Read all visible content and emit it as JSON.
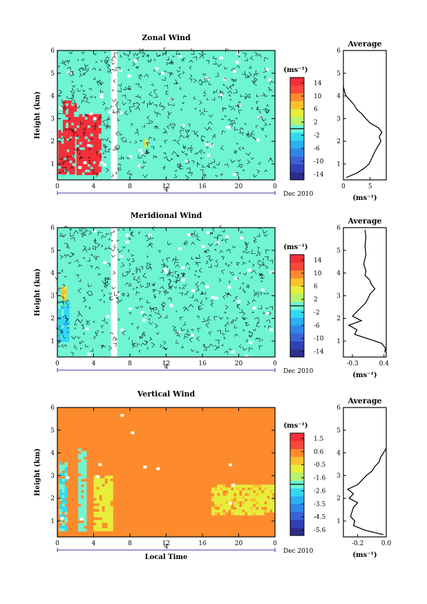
{
  "chart_data": [
    {
      "type": "heatmap",
      "title": "Zonal Wind",
      "ylabel": "Height (km)",
      "xlabel": "",
      "x_ticks": [
        "0",
        "4",
        "8",
        "12",
        "16",
        "20",
        "0"
      ],
      "xlim": [
        0,
        24
      ],
      "y_ticks": [
        "1",
        "2",
        "3",
        "4",
        "5",
        "6"
      ],
      "ylim": [
        0.3,
        6
      ],
      "date_label": "4",
      "month_label": "Dec 2010",
      "colorbar": {
        "unit": "(ms⁻¹)",
        "ticks": [
          "14",
          "10",
          "6",
          "2",
          "-2",
          "-6",
          "-10",
          "-14"
        ],
        "range": [
          -16,
          16
        ],
        "colors": [
          "#2b2e8c",
          "#3040b5",
          "#3a63d6",
          "#2f86e8",
          "#29aff2",
          "#33d8f0",
          "#6ff5d4",
          "#b7f36c",
          "#e6ee3a",
          "#fcc22e",
          "#fd8b2d",
          "#f8483c",
          "#f42f3a"
        ]
      },
      "background_value": 0,
      "features": [
        {
          "region": "gap",
          "x": [
            5.9,
            6.6
          ],
          "y": [
            0.3,
            6
          ]
        },
        {
          "region": "red-patch-1",
          "x": [
            0.1,
            1.7
          ],
          "y": [
            0.6,
            2.5
          ],
          "value": 16
        },
        {
          "region": "red-patch-2",
          "x": [
            2.1,
            4.6
          ],
          "y": [
            0.6,
            3.2
          ],
          "value": 16
        },
        {
          "region": "red-patch-3",
          "x": [
            0.6,
            2.0
          ],
          "y": [
            2.3,
            3.8
          ],
          "value": 15
        },
        {
          "region": "yellow-dot",
          "x": [
            9.6,
            9.9
          ],
          "y": [
            1.8,
            2.1
          ],
          "value": 7
        }
      ],
      "profile": {
        "title": "Average",
        "xlabel": "(ms⁻¹)",
        "x_ticks": [
          "0",
          "5"
        ],
        "xlim": [
          0,
          8
        ],
        "ylim": [
          0.3,
          6
        ],
        "y": [
          0.4,
          0.6,
          0.8,
          1.0,
          1.2,
          1.4,
          1.6,
          1.8,
          2.0,
          2.2,
          2.4,
          2.6,
          2.8,
          3.0,
          3.2,
          3.4,
          3.6,
          3.8,
          4.0,
          4.2,
          4.4
        ],
        "x": [
          0.5,
          2.5,
          3.8,
          4.8,
          5.2,
          5.6,
          6.0,
          6.5,
          7.0,
          6.7,
          7.2,
          6.5,
          5.0,
          4.2,
          3.5,
          2.5,
          2.0,
          1.3,
          0.5,
          0.2,
          0.0
        ]
      }
    },
    {
      "type": "heatmap",
      "title": "Meridional Wind",
      "ylabel": "Height (km)",
      "xlabel": "",
      "x_ticks": [
        "0",
        "4",
        "8",
        "12",
        "16",
        "20",
        "0"
      ],
      "xlim": [
        0,
        24
      ],
      "y_ticks": [
        "1",
        "2",
        "3",
        "4",
        "5",
        "6"
      ],
      "ylim": [
        0.3,
        6
      ],
      "date_label": "4",
      "month_label": "Dec 2010",
      "colorbar": {
        "unit": "(ms⁻¹)",
        "ticks": [
          "14",
          "10",
          "6",
          "2",
          "-2",
          "-6",
          "-10",
          "-14"
        ],
        "range": [
          -16,
          16
        ],
        "colors": [
          "#2b2e8c",
          "#3040b5",
          "#3a63d6",
          "#2f86e8",
          "#29aff2",
          "#33d8f0",
          "#6ff5d4",
          "#b7f36c",
          "#e6ee3a",
          "#fcc22e",
          "#fd8b2d",
          "#f8483c",
          "#f42f3a"
        ]
      },
      "background_value": 0,
      "features": [
        {
          "region": "gap",
          "x": [
            5.9,
            6.6
          ],
          "y": [
            0.3,
            6
          ]
        },
        {
          "region": "blue-patch",
          "x": [
            0.1,
            1.2
          ],
          "y": [
            1.0,
            2.8
          ],
          "value": -3
        },
        {
          "region": "yellow-patch",
          "x": [
            0.4,
            0.9
          ],
          "y": [
            2.8,
            3.4
          ],
          "value": 6
        }
      ],
      "profile": {
        "title": "Average",
        "xlabel": "(ms⁻¹)",
        "x_ticks": [
          "-0.3",
          "0.4"
        ],
        "xlim": [
          -0.5,
          0.45
        ],
        "ylim": [
          0.3,
          6
        ],
        "y": [
          0.5,
          0.7,
          0.9,
          1.1,
          1.3,
          1.5,
          1.7,
          1.9,
          2.1,
          2.3,
          2.5,
          2.7,
          2.9,
          3.1,
          3.3,
          3.5,
          3.7,
          3.9,
          4.1,
          4.4,
          4.8,
          5.2,
          5.6,
          5.9
        ],
        "x": [
          0.42,
          0.43,
          0.35,
          0.05,
          -0.25,
          -0.2,
          -0.38,
          -0.1,
          -0.3,
          -0.2,
          -0.1,
          0.0,
          0.05,
          0.1,
          0.2,
          0.12,
          0.08,
          -0.02,
          0.0,
          -0.05,
          0.0,
          -0.02,
          0.0,
          -0.02
        ]
      }
    },
    {
      "type": "heatmap",
      "title": "Vertical Wind",
      "ylabel": "Height (km)",
      "xlabel": "Local Time",
      "x_ticks": [
        "0",
        "4",
        "8",
        "12",
        "16",
        "20",
        "0"
      ],
      "xlim": [
        0,
        24
      ],
      "y_ticks": [
        "1",
        "2",
        "3",
        "4",
        "5",
        "6"
      ],
      "ylim": [
        0.3,
        6
      ],
      "date_label": "4",
      "month_label": "Dec 2010",
      "colorbar": {
        "unit": "(ms⁻¹)",
        "ticks": [
          "1.5",
          "0.6",
          "-0.5",
          "-1.6",
          "-2.6",
          "-3.5",
          "-4.5",
          "-5.6"
        ],
        "range": [
          -6.0,
          2.0
        ],
        "colors": [
          "#2b2e8c",
          "#3040b5",
          "#3a63d6",
          "#2f86e8",
          "#29aff2",
          "#33d8f0",
          "#6ff5d4",
          "#b7f36c",
          "#e6ee3a",
          "#fcc22e",
          "#fd8b2d",
          "#f8483c",
          "#f42f3a"
        ]
      },
      "background_value": 0.2,
      "features": [
        {
          "region": "cyan-strip-1",
          "x": [
            0.2,
            1.0
          ],
          "y": [
            0.6,
            3.6
          ],
          "value": -2.3
        },
        {
          "region": "cyan-strip-2",
          "x": [
            2.3,
            3.2
          ],
          "y": [
            0.6,
            4.2
          ],
          "value": -2.0
        },
        {
          "region": "lime-strip",
          "x": [
            4.0,
            5.9
          ],
          "y": [
            0.6,
            3.0
          ],
          "value": -0.8
        },
        {
          "region": "yellow-band",
          "x": [
            17.0,
            24.0
          ],
          "y": [
            1.3,
            2.6
          ],
          "value": -0.6
        }
      ],
      "profile": {
        "title": "Average",
        "xlabel": "(ms⁻¹)",
        "x_ticks": [
          "-0.2",
          "0.0"
        ],
        "xlim": [
          -0.3,
          0.0
        ],
        "ylim": [
          0.3,
          6
        ],
        "y": [
          0.4,
          0.6,
          0.8,
          1.0,
          1.2,
          1.4,
          1.6,
          1.8,
          2.0,
          2.2,
          2.4,
          2.6,
          2.8,
          3.0,
          3.2,
          3.4,
          3.6,
          3.8,
          4.0,
          4.2
        ],
        "x": [
          -0.02,
          -0.15,
          -0.23,
          -0.22,
          -0.25,
          -0.24,
          -0.23,
          -0.2,
          -0.26,
          -0.23,
          -0.27,
          -0.2,
          -0.17,
          -0.14,
          -0.1,
          -0.08,
          -0.05,
          -0.04,
          -0.02,
          0.0
        ]
      }
    }
  ]
}
